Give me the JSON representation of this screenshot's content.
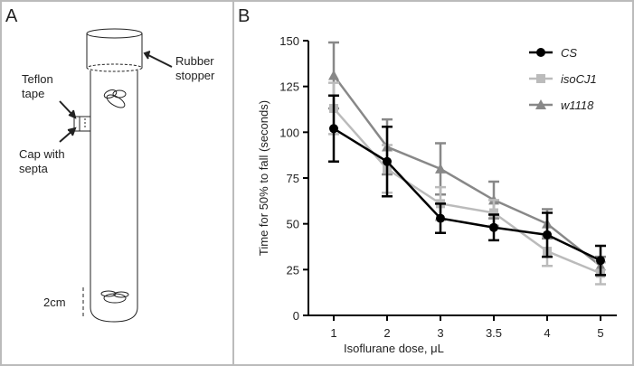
{
  "panels": [
    "A",
    "B"
  ],
  "diagram": {
    "teflon_tape": [
      "Teflon",
      "tape"
    ],
    "rubber_stopper": [
      "Rubber",
      "stopper"
    ],
    "cap_with_septa": [
      "Cap with",
      "septa"
    ],
    "scale": "2cm"
  },
  "chart_data": {
    "type": "line",
    "x_label": "Isoflurane dose, μL",
    "y_label": "Time for 50% to fall (seconds)",
    "categories": [
      "1",
      "2",
      "3",
      "3.5",
      "4",
      "5"
    ],
    "ylim": [
      0,
      150
    ],
    "yticks": [
      0,
      25,
      50,
      75,
      100,
      125,
      150
    ],
    "series": [
      {
        "name": "CS",
        "color": "#000000",
        "marker": "circle",
        "values": [
          102,
          84,
          53,
          48,
          44,
          30
        ],
        "errors": [
          18,
          19,
          8,
          7,
          12,
          8
        ]
      },
      {
        "name": "isoCJ1",
        "color": "#bbbbbb",
        "marker": "square",
        "values": [
          113,
          80,
          61,
          56,
          35,
          23
        ],
        "errors": [
          14,
          13,
          9,
          7,
          8,
          6
        ]
      },
      {
        "name": "w1118",
        "color": "#888888",
        "marker": "triangle",
        "values": [
          131,
          92,
          80,
          63,
          50,
          27
        ],
        "errors": [
          18,
          15,
          14,
          10,
          8,
          5
        ]
      }
    ]
  }
}
